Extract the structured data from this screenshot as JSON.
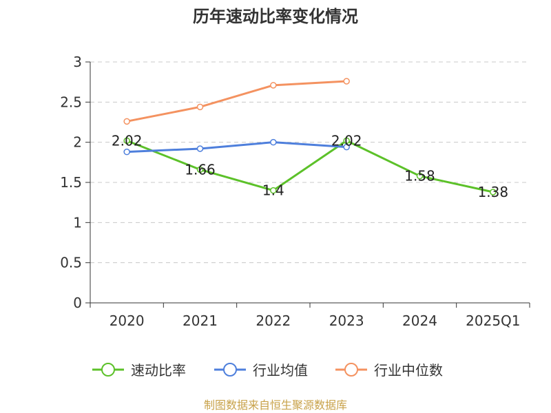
{
  "chart_data": {
    "type": "line",
    "title": "历年速动比率变化情况",
    "categories": [
      "2020",
      "2021",
      "2022",
      "2023",
      "2024",
      "2025Q1"
    ],
    "y_ticks": [
      "0",
      "0.5",
      "1",
      "1.5",
      "2",
      "2.5",
      "3"
    ],
    "ylim": [
      0,
      3
    ],
    "grid": true,
    "legend_position": "bottom",
    "series": [
      {
        "name": "速动比率",
        "color": "#5cc129",
        "values": [
          2.02,
          1.66,
          1.4,
          2.02,
          1.58,
          1.38
        ],
        "labels": [
          "2.02",
          "1.66",
          "1.4",
          "2.02",
          "1.58",
          "1.38"
        ]
      },
      {
        "name": "行业均值",
        "color": "#4e7fdc",
        "values": [
          1.88,
          1.92,
          2.0,
          1.94,
          null,
          null
        ]
      },
      {
        "name": "行业中位数",
        "color": "#f49260",
        "values": [
          2.26,
          2.44,
          2.71,
          2.76,
          null,
          null
        ]
      }
    ],
    "source": "制图数据来自恒生聚源数据库"
  }
}
